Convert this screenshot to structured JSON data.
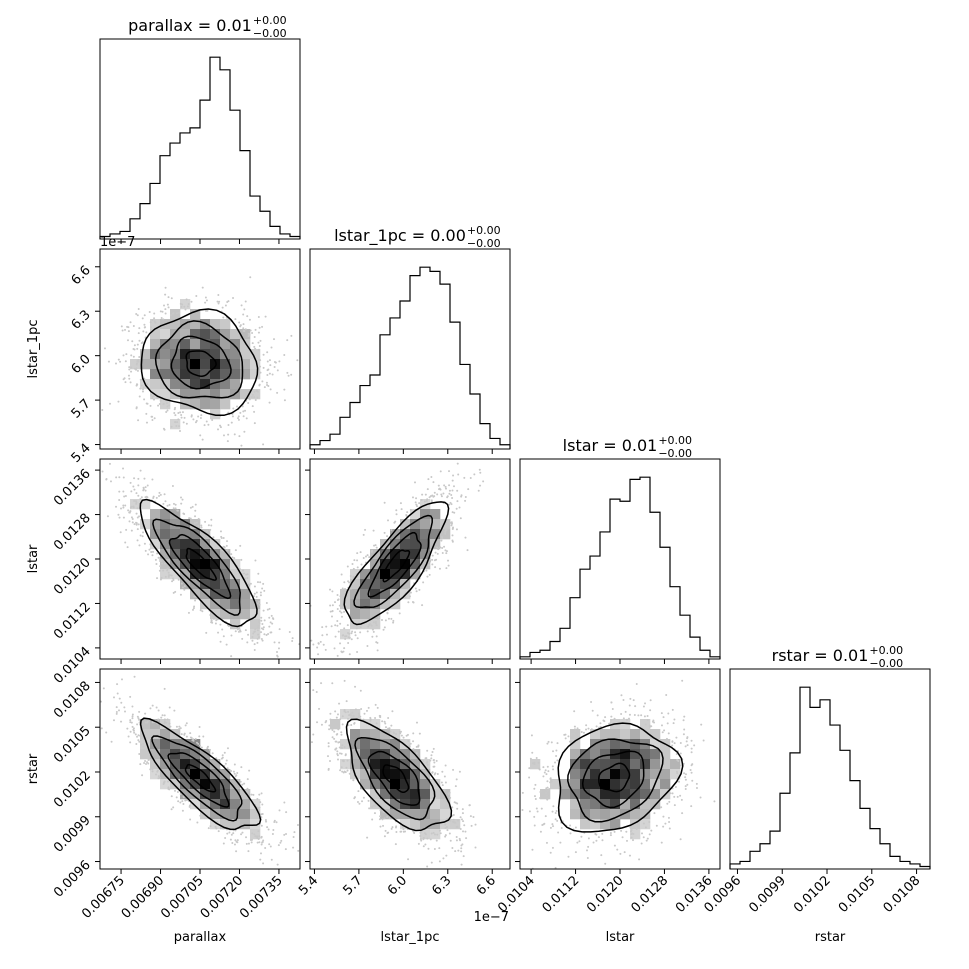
{
  "chart_data": {
    "type": "corner",
    "parameters": [
      {
        "key": "parallax",
        "axis_label": "parallax",
        "range": [
          0.00667,
          0.00743
        ],
        "ticks": [
          0.00675,
          0.0069,
          0.00705,
          0.0072,
          0.00735
        ],
        "tick_labels": [
          "0.00675",
          "0.00690",
          "0.00705",
          "0.00720",
          "0.00735"
        ],
        "title": {
          "name": "parallax",
          "value": "0.01",
          "upper": "+0.00",
          "lower": "−0.00"
        },
        "exponent_label": "",
        "center": 0.00705,
        "sigma": 0.00011
      },
      {
        "key": "lstar_1pc",
        "axis_label": "lstar_1pc",
        "range": [
          5.37,
          6.72
        ],
        "ticks": [
          5.4,
          5.7,
          6.0,
          6.3,
          6.6
        ],
        "tick_labels": [
          "5.4",
          "5.7",
          "6.0",
          "6.3",
          "6.6"
        ],
        "title": {
          "name": "lstar_1pc",
          "value": "0.00",
          "upper": "+0.00",
          "lower": "−0.00"
        },
        "exponent_label": "1e−7",
        "center": 5.95,
        "sigma": 0.17
      },
      {
        "key": "lstar",
        "axis_label": "lstar",
        "range": [
          0.0102,
          0.0138
        ],
        "ticks": [
          0.0104,
          0.0112,
          0.012,
          0.0128,
          0.0136
        ],
        "tick_labels": [
          "0.0104",
          "0.0112",
          "0.0120",
          "0.0128",
          "0.0136"
        ],
        "title": {
          "name": "lstar",
          "value": "0.01",
          "upper": "+0.00",
          "lower": "−0.00"
        },
        "exponent_label": "",
        "center": 0.0119,
        "sigma": 0.00055
      },
      {
        "key": "rstar",
        "axis_label": "rstar",
        "range": [
          0.00955,
          0.01089
        ],
        "ticks": [
          0.0096,
          0.0099,
          0.0102,
          0.0105,
          0.0108
        ],
        "tick_labels": [
          "0.0096",
          "0.0099",
          "0.0102",
          "0.0105",
          "0.0108"
        ],
        "title": {
          "name": "rstar",
          "value": "0.01",
          "upper": "+0.00",
          "lower": "−0.00"
        },
        "exponent_label": "",
        "center": 0.01016,
        "sigma": 0.00018
      }
    ],
    "histograms": [
      {
        "param": "parallax",
        "counts": [
          1,
          2,
          3,
          8,
          14,
          22,
          33,
          38,
          42,
          44,
          55,
          72,
          67,
          51,
          35,
          17,
          11,
          5,
          2,
          1
        ]
      },
      {
        "param": "lstar_1pc",
        "counts": [
          2,
          4,
          7,
          15,
          22,
          30,
          35,
          54,
          62,
          70,
          82,
          86,
          84,
          78,
          60,
          40,
          26,
          12,
          5,
          2
        ]
      },
      {
        "param": "lstar",
        "counts": [
          1,
          3,
          4,
          8,
          14,
          28,
          41,
          47,
          58,
          73,
          72,
          82,
          83,
          67,
          51,
          33,
          20,
          10,
          4,
          1
        ]
      },
      {
        "param": "rstar",
        "counts": [
          2,
          3,
          7,
          10,
          15,
          30,
          46,
          72,
          64,
          67,
          57,
          47,
          35,
          24,
          16,
          10,
          5,
          3,
          2,
          1
        ]
      }
    ],
    "correlations": {
      "parallax|lstar_1pc": -0.1,
      "parallax|lstar": -0.82,
      "lstar_1pc|lstar": 0.8,
      "parallax|rstar": -0.82,
      "lstar_1pc|rstar": -0.65,
      "lstar|rstar": 0.2
    },
    "contour_levels": [
      0.118,
      0.393,
      0.675,
      0.865
    ],
    "grid": false,
    "legend": "none"
  }
}
